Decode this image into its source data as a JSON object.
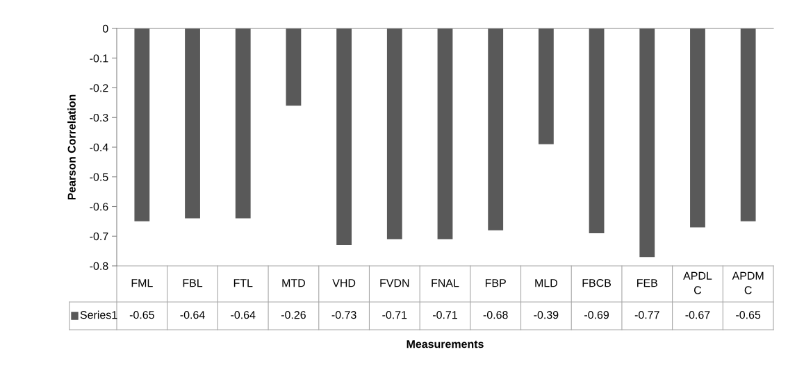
{
  "chart_data": {
    "type": "bar",
    "xlabel": "Measurements",
    "ylabel": "Pearson Correlation",
    "categories": [
      "FML",
      "FBL",
      "FTL",
      "MTD",
      "VHD",
      "FVDN",
      "FNAL",
      "FBP",
      "MLD",
      "FBCB",
      "FEB",
      "APDLC",
      "APDMC"
    ],
    "series": [
      {
        "name": "Series1",
        "color": "#595959",
        "values": [
          -0.65,
          -0.64,
          -0.64,
          -0.26,
          -0.73,
          -0.71,
          -0.71,
          -0.68,
          -0.39,
          -0.69,
          -0.77,
          -0.67,
          -0.65
        ]
      }
    ],
    "ylim": [
      -0.8,
      0
    ],
    "yticks": [
      0,
      -0.1,
      -0.2,
      -0.3,
      -0.4,
      -0.5,
      -0.6,
      -0.7,
      -0.8
    ],
    "data_labels": true,
    "grid": false
  }
}
